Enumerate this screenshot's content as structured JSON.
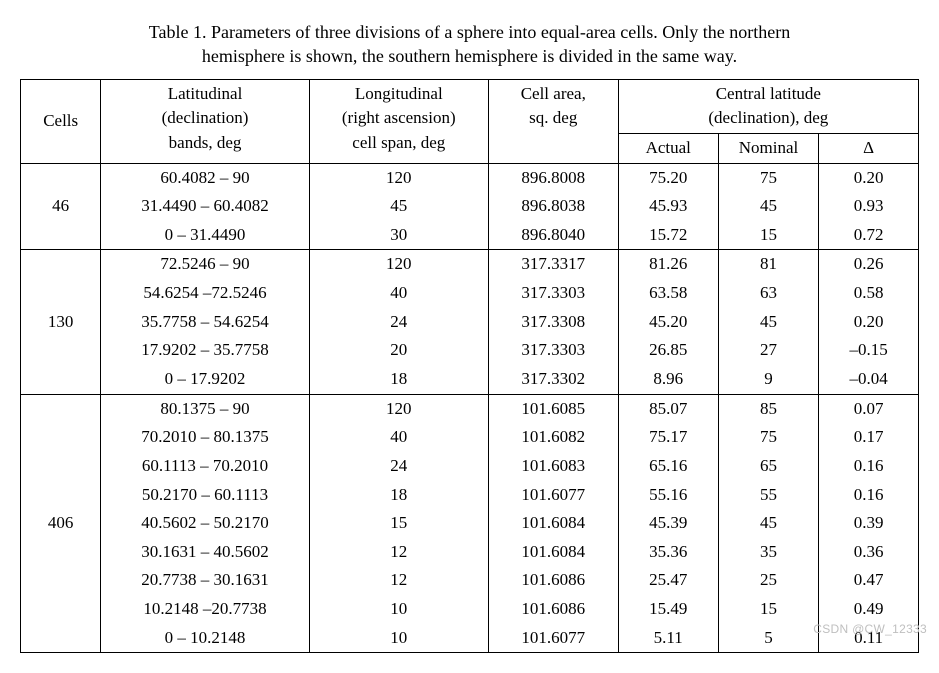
{
  "caption": {
    "line1": "Table 1. Parameters of three divisions of a sphere into equal-area cells. Only the northern",
    "line2": "hemisphere is shown, the southern hemisphere is divided in the same way."
  },
  "headers": {
    "cells": "Cells",
    "lat1": "Latitudinal",
    "lat2": "(declination)",
    "lat3": "bands, deg",
    "lon1": "Longitudinal",
    "lon2": "(right ascension)",
    "lon3": "cell span, deg",
    "area1": "Cell area,",
    "area2": "sq. deg",
    "cent1": "Central latitude",
    "cent2": "(declination), deg",
    "actual": "Actual",
    "nominal": "Nominal",
    "delta": "Δ"
  },
  "groups": [
    {
      "cells": "46",
      "rows": [
        {
          "lat": "60.4082 – 90",
          "lon": "120",
          "area": "896.8008",
          "actual": "75.20",
          "nominal": "75",
          "delta": "0.20"
        },
        {
          "lat": "31.4490 – 60.4082",
          "lon": "45",
          "area": "896.8038",
          "actual": "45.93",
          "nominal": "45",
          "delta": "0.93"
        },
        {
          "lat": "0 – 31.4490",
          "lon": "30",
          "area": "896.8040",
          "actual": "15.72",
          "nominal": "15",
          "delta": "0.72"
        }
      ]
    },
    {
      "cells": "130",
      "rows": [
        {
          "lat": "72.5246 – 90",
          "lon": "120",
          "area": "317.3317",
          "actual": "81.26",
          "nominal": "81",
          "delta": "0.26"
        },
        {
          "lat": "54.6254  –72.5246",
          "lon": "40",
          "area": "317.3303",
          "actual": "63.58",
          "nominal": "63",
          "delta": "0.58"
        },
        {
          "lat": "35.7758 – 54.6254",
          "lon": "24",
          "area": "317.3308",
          "actual": "45.20",
          "nominal": "45",
          "delta": "0.20"
        },
        {
          "lat": "17.9202 – 35.7758",
          "lon": "20",
          "area": "317.3303",
          "actual": "26.85",
          "nominal": "27",
          "delta": "–0.15"
        },
        {
          "lat": "0 – 17.9202",
          "lon": "18",
          "area": "317.3302",
          "actual": "8.96",
          "nominal": "9",
          "delta": "–0.04"
        }
      ]
    },
    {
      "cells": "406",
      "rows": [
        {
          "lat": "80.1375 – 90",
          "lon": "120",
          "area": "101.6085",
          "actual": "85.07",
          "nominal": "85",
          "delta": "0.07"
        },
        {
          "lat": "70.2010 – 80.1375",
          "lon": "40",
          "area": "101.6082",
          "actual": "75.17",
          "nominal": "75",
          "delta": "0.17"
        },
        {
          "lat": "60.1113 – 70.2010",
          "lon": "24",
          "area": "101.6083",
          "actual": "65.16",
          "nominal": "65",
          "delta": "0.16"
        },
        {
          "lat": "50.2170 – 60.1113",
          "lon": "18",
          "area": "101.6077",
          "actual": "55.16",
          "nominal": "55",
          "delta": "0.16"
        },
        {
          "lat": "40.5602 – 50.2170",
          "lon": "15",
          "area": "101.6084",
          "actual": "45.39",
          "nominal": "45",
          "delta": "0.39"
        },
        {
          "lat": "30.1631 – 40.5602",
          "lon": "12",
          "area": "101.6084",
          "actual": "35.36",
          "nominal": "35",
          "delta": "0.36"
        },
        {
          "lat": "20.7738 – 30.1631",
          "lon": "12",
          "area": "101.6086",
          "actual": "25.47",
          "nominal": "25",
          "delta": "0.47"
        },
        {
          "lat": "10.2148  –20.7738",
          "lon": "10",
          "area": "101.6086",
          "actual": "15.49",
          "nominal": "15",
          "delta": "0.49"
        },
        {
          "lat": "0 – 10.2148",
          "lon": "10",
          "area": "101.6077",
          "actual": "5.11",
          "nominal": "5",
          "delta": "0.11"
        }
      ]
    }
  ],
  "watermark": "CSDN @CW_12333",
  "style": {
    "font_family": "Times New Roman",
    "caption_fontsize_pt": 14,
    "table_fontsize_pt": 13,
    "border_color": "#000000",
    "background_color": "#ffffff",
    "text_color": "#000000",
    "watermark_color": "#bfbfbf"
  }
}
